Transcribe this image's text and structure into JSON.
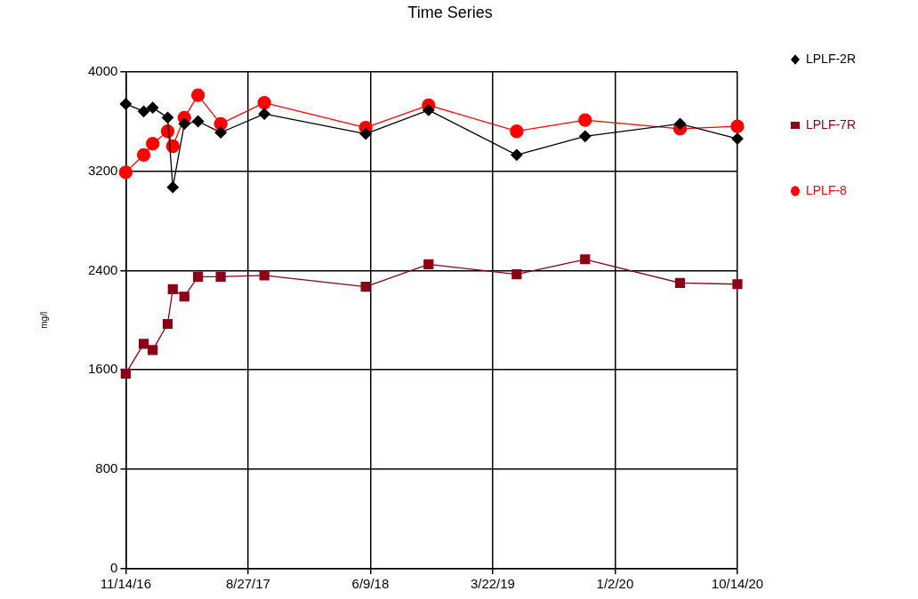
{
  "chart_data": {
    "type": "line",
    "title": "Time Series",
    "ylabel": "mg/l",
    "xlim": [
      "2016-11-14",
      "2020-10-14"
    ],
    "xticks": [
      {
        "value": "2016-11-14",
        "label": "11/14/16"
      },
      {
        "value": "2017-08-27",
        "label": "8/27/17"
      },
      {
        "value": "2018-06-09",
        "label": "6/9/18"
      },
      {
        "value": "2019-03-22",
        "label": "3/22/19"
      },
      {
        "value": "2020-01-02",
        "label": "1/2/20"
      },
      {
        "value": "2020-10-14",
        "label": "10/14/20"
      }
    ],
    "ylim": [
      0,
      4000
    ],
    "yticks": [
      0,
      800,
      1600,
      2400,
      3200,
      4000
    ],
    "grid": true,
    "legend": "right",
    "x": [
      "2016-11-14",
      "2016-12-26",
      "2017-01-16",
      "2017-02-20",
      "2017-03-04",
      "2017-03-31",
      "2017-05-02",
      "2017-06-24",
      "2017-10-04",
      "2018-05-29",
      "2018-10-23",
      "2019-05-17",
      "2019-10-24",
      "2020-06-02",
      "2020-10-14"
    ],
    "series": [
      {
        "name": "LPLF-2R",
        "color": "#000000",
        "marker": "diamond",
        "values": [
          3740,
          3680,
          3710,
          3630,
          3070,
          3580,
          3600,
          3510,
          3660,
          3500,
          3690,
          3330,
          3480,
          3580,
          3460
        ]
      },
      {
        "name": "LPLF-7R",
        "color": "#8b0016",
        "marker": "square",
        "values": [
          1570,
          1810,
          1760,
          1970,
          2250,
          2190,
          2350,
          2350,
          2360,
          2270,
          2450,
          2370,
          2490,
          2300,
          2290
        ]
      },
      {
        "name": "LPLF-8",
        "color": "#ff0000",
        "marker": "circle",
        "values": [
          3190,
          3330,
          3420,
          3520,
          3400,
          3630,
          3810,
          3580,
          3750,
          3550,
          3730,
          3520,
          3610,
          3540,
          3560
        ]
      }
    ]
  }
}
